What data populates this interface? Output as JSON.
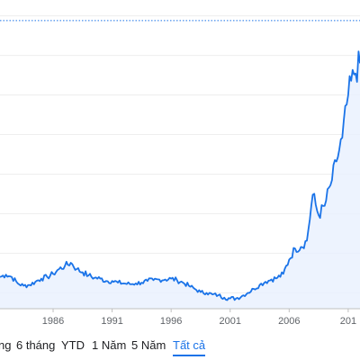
{
  "chart_data": {
    "type": "area",
    "title": "",
    "xlabel": "",
    "ylabel": "",
    "x_ticks": [
      "1986",
      "1991",
      "1996",
      "2001",
      "2006",
      "201"
    ],
    "x": [
      1981.5,
      1982,
      1982.5,
      1983,
      1983.5,
      1984,
      1984.5,
      1985,
      1985.5,
      1986,
      1986.5,
      1987,
      1987.5,
      1988,
      1988.5,
      1989,
      1989.5,
      1990,
      1990.5,
      1991,
      1991.5,
      1992,
      1992.5,
      1993,
      1993.5,
      1994,
      1994.5,
      1995,
      1995.5,
      1996,
      1996.5,
      1997,
      1997.5,
      1998,
      1998.5,
      1999,
      1999.5,
      2000,
      2000.5,
      2001,
      2001.5,
      2002,
      2002.5,
      2003,
      2003.5,
      2004,
      2004.5,
      2005,
      2005.5,
      2006,
      2006.5,
      2007,
      2007.5,
      2008,
      2008.5,
      2009,
      2009.5,
      2010,
      2010.5,
      2011,
      2011.5,
      2012
    ],
    "values": [
      10,
      11.5,
      10,
      6,
      4.5,
      5,
      7,
      9,
      10,
      12,
      15,
      17,
      19,
      15,
      13,
      11,
      9.5,
      9,
      7.5,
      7.5,
      6.5,
      6,
      5.5,
      6,
      6.5,
      7.5,
      8,
      8.5,
      8.5,
      9,
      8,
      6.5,
      4.5,
      2.5,
      0.5,
      0,
      -1,
      -1.5,
      -3,
      -3.5,
      -3.5,
      -2,
      0,
      2.5,
      5,
      7,
      8.5,
      9.5,
      12,
      21,
      28,
      29,
      33,
      62,
      49,
      55,
      68,
      83,
      98,
      125,
      138,
      145
    ],
    "reference_line": 172,
    "ylim": [
      -10,
      185
    ],
    "xlim": [
      1981.5,
      2012
    ],
    "line_color": "#1a73e8",
    "fill_color": "#e8f0fe",
    "grid": "horizontal"
  },
  "range_selector": {
    "buttons": [
      "ng",
      "6 tháng",
      "YTD",
      "1 Năm",
      "5 Năm",
      "Tất cả"
    ],
    "active": "Tất cả"
  }
}
